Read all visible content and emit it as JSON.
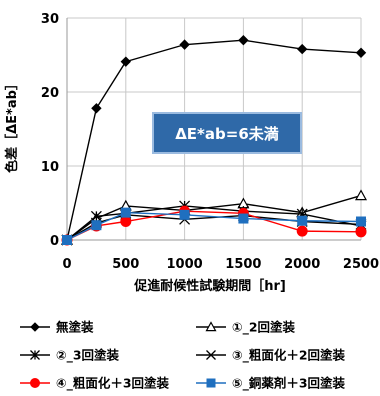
{
  "chart_data": {
    "type": "line",
    "title": "",
    "xlabel": "促進耐候性試験期間［hr]",
    "ylabel": "色差［ΔE*ab］",
    "xlim": [
      0,
      2500
    ],
    "ylim": [
      0,
      30
    ],
    "x_ticks": [
      0,
      500,
      1000,
      1500,
      2000,
      2500
    ],
    "y_ticks": [
      0,
      10,
      20,
      30
    ],
    "grid": true,
    "legend_position": "bottom",
    "x": [
      0,
      250,
      500,
      1000,
      1500,
      2000,
      2500
    ],
    "annotation": "ΔE*ab=6未満",
    "series": [
      {
        "name": "無塗装",
        "marker": "diamond",
        "color": "#000000",
        "values": [
          0,
          17.8,
          24.1,
          26.4,
          27.0,
          25.8,
          25.3
        ]
      },
      {
        "name": "①_2回塗装",
        "marker": "triangle-open",
        "color": "#000000",
        "values": [
          0,
          2.9,
          4.6,
          4.0,
          4.9,
          3.7,
          6.0
        ]
      },
      {
        "name": "②_3回塗装",
        "marker": "asterisk",
        "color": "#000000",
        "values": [
          0,
          3.2,
          3.6,
          4.6,
          3.9,
          3.5,
          1.9
        ]
      },
      {
        "name": "③_粗面化＋2回塗装",
        "marker": "x",
        "color": "#000000",
        "values": [
          0,
          2.3,
          3.4,
          2.8,
          3.3,
          2.5,
          2.1
        ]
      },
      {
        "name": "④_粗面化＋3回塗装",
        "marker": "circle",
        "color": "#ff0000",
        "values": [
          0,
          1.9,
          2.5,
          3.9,
          3.6,
          1.2,
          1.1
        ]
      },
      {
        "name": "⑤_銅薬剤＋3回塗装",
        "marker": "square",
        "color": "#1f6fbf",
        "values": [
          0,
          2.0,
          3.7,
          3.4,
          2.9,
          2.6,
          2.5
        ]
      }
    ]
  }
}
